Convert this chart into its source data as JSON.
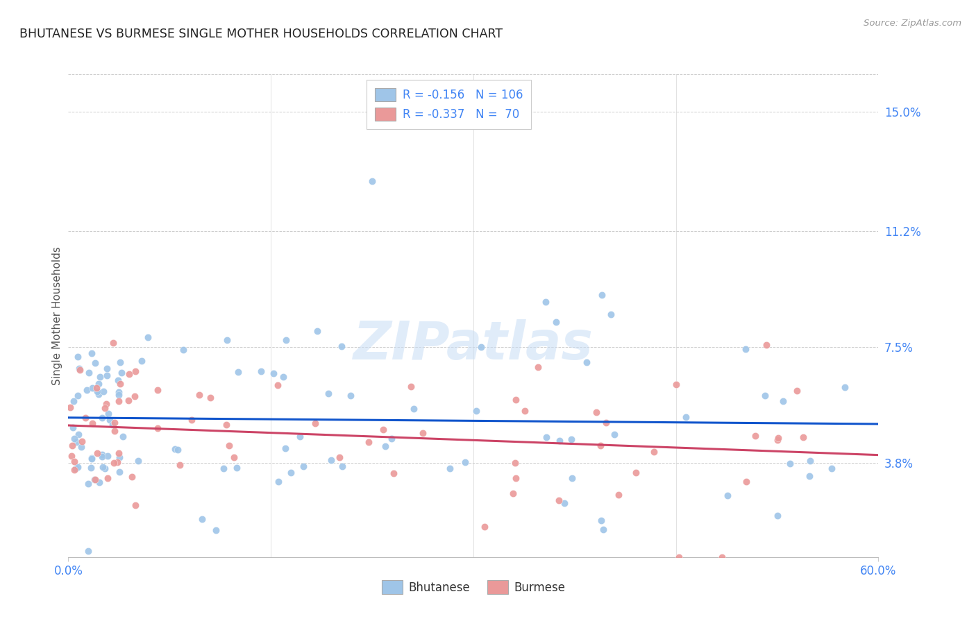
{
  "title": "BHUTANESE VS BURMESE SINGLE MOTHER HOUSEHOLDS CORRELATION CHART",
  "source": "Source: ZipAtlas.com",
  "ylabel": "Single Mother Households",
  "ytick_labels": [
    "3.8%",
    "7.5%",
    "11.2%",
    "15.0%"
  ],
  "ytick_values": [
    0.038,
    0.075,
    0.112,
    0.15
  ],
  "xmin": 0.0,
  "xmax": 0.6,
  "ymin": 0.008,
  "ymax": 0.162,
  "legend_bhutanese": "Bhutanese",
  "legend_burmese": "Burmese",
  "legend_R_bhutanese": "-0.156",
  "legend_N_bhutanese": "106",
  "legend_R_burmese": "-0.337",
  "legend_N_burmese": " 70",
  "color_bhutanese": "#9fc5e8",
  "color_burmese": "#ea9999",
  "color_trendline_bhutanese": "#1155cc",
  "color_trendline_burmese": "#cc4466",
  "color_axis_labels": "#4285f4",
  "color_title": "#222222",
  "watermark_text": "ZIPatlas",
  "seed": 12345
}
